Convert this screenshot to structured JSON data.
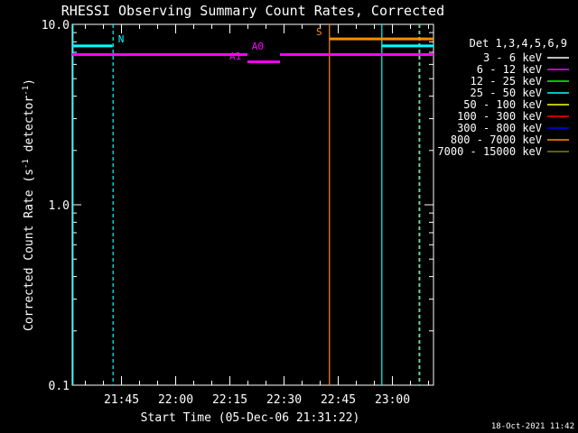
{
  "chart_data": {
    "type": "line",
    "title": "RHESSI Observing Summary Count Rates, Corrected",
    "xlabel": "Start Time (05-Dec-06 21:31:22)",
    "ylabel_main": "Corrected Count Rate (s",
    "ylabel_sup1": "-1",
    "ylabel_mid": " detector",
    "ylabel_sup2": "-1",
    "ylabel_end": ")",
    "timestamp": "18-Oct-2021 11:42",
    "y_scale": "log",
    "ylim": [
      0.1,
      10.0
    ],
    "xlim_minutes": [
      0,
      100
    ],
    "y_ticks": [
      {
        "value": 10.0,
        "label": "10.0"
      },
      {
        "value": 1.0,
        "label": "1.0"
      },
      {
        "value": 0.1,
        "label": "0.1"
      }
    ],
    "x_ticks": [
      {
        "minute": 13.63,
        "label": "21:45"
      },
      {
        "minute": 28.63,
        "label": "22:00"
      },
      {
        "minute": 43.63,
        "label": "22:15"
      },
      {
        "minute": 58.63,
        "label": "22:30"
      },
      {
        "minute": 73.63,
        "label": "22:45"
      },
      {
        "minute": 88.63,
        "label": "23:00"
      }
    ],
    "legend": {
      "title": "Det 1,3,4,5,6,9",
      "entries": [
        {
          "label": "3 - 6 keV",
          "color": "#ffffff"
        },
        {
          "label": "6 - 12 keV",
          "color": "#ff00ff"
        },
        {
          "label": "12 - 25 keV",
          "color": "#00ff00"
        },
        {
          "label": "25 - 50 keV",
          "color": "#00ffff"
        },
        {
          "label": "50 - 100 keV",
          "color": "#ffff00"
        },
        {
          "label": "100 - 300 keV",
          "color": "#ff0000"
        },
        {
          "label": "300 - 800 keV",
          "color": "#0000ff"
        },
        {
          "label": "800 - 7000 keV",
          "color": "#ff8c00"
        },
        {
          "label": "7000 - 15000 keV",
          "color": "#808000"
        }
      ]
    },
    "segments": [
      {
        "name": "cyan-early",
        "color": "#00ffff",
        "x": [
          0,
          11.1
        ],
        "y": 7.6
      },
      {
        "name": "magenta-main-1",
        "color": "#ff00ff",
        "x": [
          0,
          48.5
        ],
        "y": 6.8
      },
      {
        "name": "magenta-main-2",
        "color": "#ff00ff",
        "x": [
          57.5,
          100
        ],
        "y": 6.8
      },
      {
        "name": "magenta-a1",
        "color": "#ff00ff",
        "x": [
          48.5,
          57.5
        ],
        "y": 6.2
      },
      {
        "name": "orange-late",
        "color": "#ff8c00",
        "x": [
          71.2,
          100
        ],
        "y": 8.3
      },
      {
        "name": "cyan-late",
        "color": "#00ffff",
        "x": [
          85.7,
          100
        ],
        "y": 7.6
      }
    ],
    "vertical_lines": [
      {
        "name": "cyan-start",
        "color": "#00ffff",
        "x": 0.2,
        "style": "solid"
      },
      {
        "name": "cyan-n",
        "color": "#00ffff",
        "x": 11.3,
        "style": "dashed"
      },
      {
        "name": "orange-s",
        "color": "#ff8c00",
        "x": 71.2,
        "style": "solid"
      },
      {
        "name": "cyan-late",
        "color": "#00ffff",
        "x": 85.7,
        "style": "solid"
      },
      {
        "name": "orange-end",
        "color": "#ff8c00",
        "x": 96.0,
        "style": "dashed"
      },
      {
        "name": "cyan-end",
        "color": "#00ffff",
        "x": 96.2,
        "style": "dashed"
      }
    ],
    "annotations": [
      {
        "text": "N",
        "color": "#00ffff",
        "x": 12.7,
        "y": 7.6
      },
      {
        "text": "A0",
        "color": "#ff00ff",
        "x": 49.7,
        "y": 6.9
      },
      {
        "text": "A1",
        "color": "#ff00ff",
        "x": 43.5,
        "y": 6.1
      },
      {
        "text": "S",
        "color": "#ff8c00",
        "x": 67.5,
        "y": 8.3
      }
    ]
  }
}
